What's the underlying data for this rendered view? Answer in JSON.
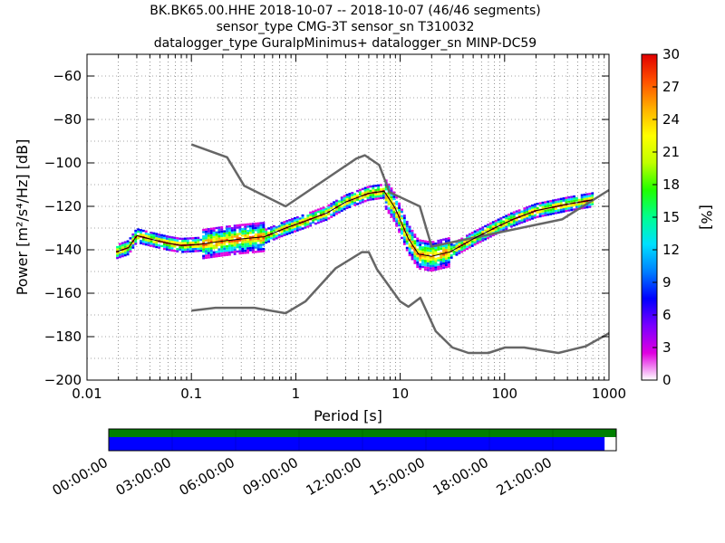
{
  "title_lines": [
    "BK.BK65.00.HHE   2018-10-07 -- 2018-10-07  (46/46 segments)",
    "sensor_type CMG-3T sensor_sn T310032",
    "datalogger_type GuralpMinimus+ datalogger_sn MINP-DC59"
  ],
  "chart_data": {
    "type": "heatmap",
    "xlabel": "Period [s]",
    "ylabel": "Power [m²/s⁴/Hz] [dB]",
    "xscale": "log",
    "xlim": [
      0.01,
      1000
    ],
    "ylim": [
      -200,
      -50
    ],
    "xticks": [
      0.01,
      0.1,
      1,
      10,
      100,
      1000
    ],
    "xtick_labels": [
      "0.01",
      "0.1",
      "1",
      "10",
      "100",
      "1000"
    ],
    "yticks": [
      -200,
      -180,
      -160,
      -140,
      -120,
      -100,
      -80,
      -60
    ],
    "ytick_labels": [
      "−200",
      "−180",
      "−160",
      "−140",
      "−120",
      "−100",
      "−80",
      "−60"
    ],
    "grid": true,
    "colorbar": {
      "label": "[%]",
      "range": [
        0,
        30
      ],
      "ticks": [
        "0",
        "3",
        "6",
        "9",
        "12",
        "15",
        "18",
        "21",
        "24",
        "27",
        "30"
      ],
      "colors": [
        "#ffffff",
        "#e000e0",
        "#7a00ff",
        "#0000ff",
        "#0080ff",
        "#00e0ff",
        "#00ff90",
        "#20ff00",
        "#c0ff00",
        "#ffff00",
        "#ffb000",
        "#ff5000",
        "#e00000"
      ]
    },
    "nhnm_curve": {
      "color": "#666666",
      "x": [
        0.1,
        0.22,
        0.32,
        0.8,
        3.8,
        4.6,
        6.3,
        7.9,
        15.4,
        20,
        354.8,
        1000
      ],
      "y": [
        -91.5,
        -97.4,
        -110.5,
        -120,
        -98,
        -96.5,
        -101,
        -113.5,
        -120,
        -138.5,
        -126,
        -112.5
      ]
    },
    "nlnm_curve": {
      "color": "#666666",
      "x": [
        0.1,
        0.17,
        0.4,
        0.8,
        1.24,
        2.4,
        4.3,
        5,
        6,
        10,
        12,
        15.6,
        21.9,
        31.6,
        45,
        70,
        101,
        154,
        328,
        600,
        1000
      ],
      "y": [
        -168,
        -166.7,
        -166.7,
        -169.2,
        -163.7,
        -148.6,
        -141.1,
        -141.1,
        -149,
        -163.8,
        -166.2,
        -162.1,
        -177.5,
        -185,
        -187.5,
        -187.5,
        -185,
        -185,
        -187.5,
        -184.4,
        -178.4
      ]
    },
    "mode_curve": {
      "color": "#000000",
      "x": [
        0.019,
        0.025,
        0.03,
        0.04,
        0.06,
        0.08,
        0.12,
        0.2,
        0.3,
        0.5,
        0.8,
        1.2,
        2,
        3,
        5,
        7,
        9,
        12,
        15,
        20,
        30,
        50,
        80,
        120,
        200,
        400,
        700
      ],
      "y": [
        -141,
        -139,
        -133.5,
        -135,
        -137,
        -138,
        -137.5,
        -136,
        -135,
        -134,
        -130,
        -127,
        -123,
        -118,
        -114,
        -113,
        -121,
        -135,
        -142,
        -143,
        -141,
        -135,
        -130,
        -126,
        -122,
        -119,
        -117
      ]
    },
    "heat_band_half_width_db": 3,
    "time_coverage": {
      "tick_labels": [
        "00:00:00",
        "03:00:00",
        "06:00:00",
        "09:00:00",
        "12:00:00",
        "15:00:00",
        "18:00:00",
        "21:00:00"
      ],
      "data_fraction_of_day": 0.977,
      "data_color": "#0000ff",
      "coverage_color": "#008000"
    }
  }
}
